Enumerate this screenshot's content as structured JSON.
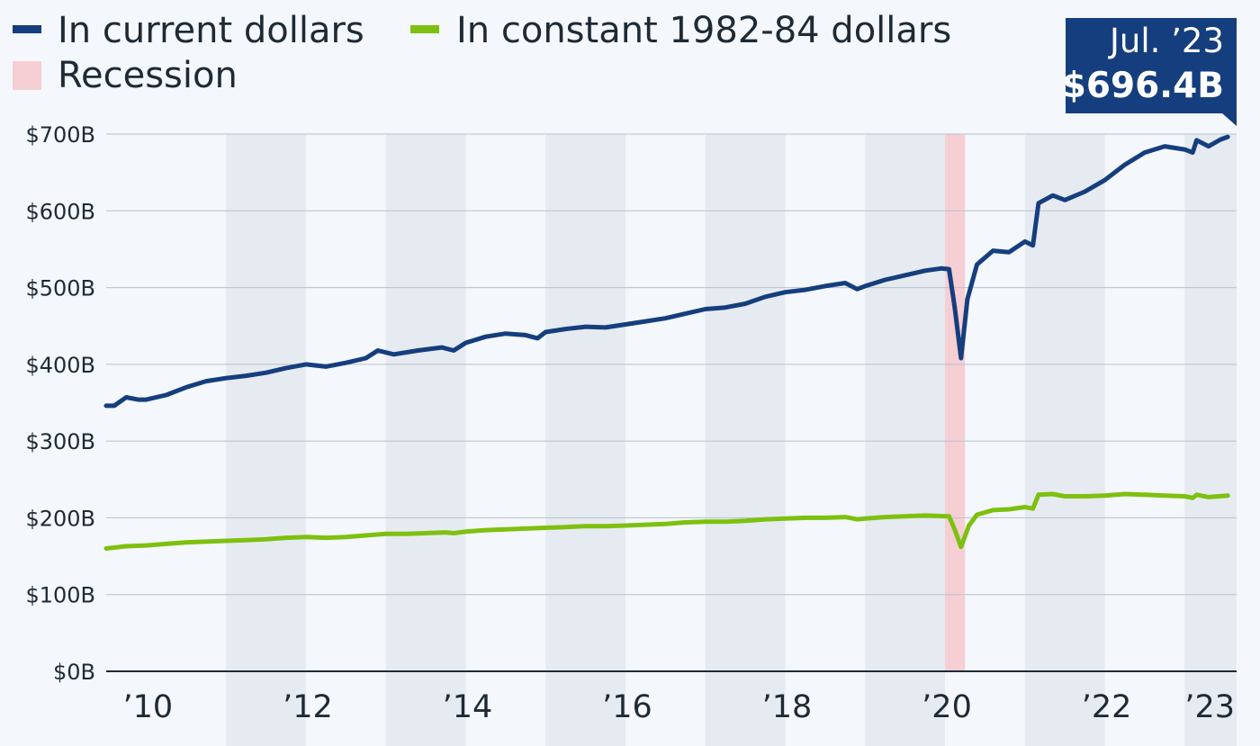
{
  "chart_data": {
    "type": "line",
    "title": "",
    "xlabel": "",
    "ylabel": "",
    "x_unit": "year",
    "xlim": [
      2009.5,
      2023.65
    ],
    "ylim": [
      0,
      700
    ],
    "y_ticks": [
      0,
      100,
      200,
      300,
      400,
      500,
      600,
      700
    ],
    "y_tick_labels": [
      "$0B",
      "$100B",
      "$200B",
      "$300B",
      "$400B",
      "$500B",
      "$600B",
      "$700B"
    ],
    "x_ticks": [
      2010,
      2012,
      2014,
      2016,
      2018,
      2020,
      2022,
      2023
    ],
    "x_tick_labels": [
      "’10",
      "’12",
      "’14",
      "’16",
      "’18",
      "’20",
      "’22",
      "’23"
    ],
    "grid": "horizontal",
    "legend_position": "top-left",
    "legend": [
      {
        "label": "In current dollars",
        "color": "#153e7e",
        "kind": "line"
      },
      {
        "label": "In constant 1982-84 dollars",
        "color": "#7ec00f",
        "kind": "line"
      },
      {
        "label": "Recession",
        "color": "#f5cfd3",
        "kind": "band"
      }
    ],
    "recession": {
      "from": 2020.0,
      "to": 2020.25
    },
    "annotation": {
      "line1": "Jul. ’23",
      "line2": "$696.4B",
      "x": 2023.54,
      "y": 696.4,
      "bg": "#153e7e"
    },
    "series": [
      {
        "name": "In current dollars",
        "color": "#153e7e",
        "points": [
          [
            2009.5,
            346
          ],
          [
            2009.6,
            346
          ],
          [
            2009.75,
            357
          ],
          [
            2009.9,
            354
          ],
          [
            2010.0,
            354
          ],
          [
            2010.25,
            360
          ],
          [
            2010.5,
            370
          ],
          [
            2010.75,
            378
          ],
          [
            2011.0,
            382
          ],
          [
            2011.25,
            385
          ],
          [
            2011.5,
            389
          ],
          [
            2011.75,
            395
          ],
          [
            2012.0,
            400
          ],
          [
            2012.25,
            397
          ],
          [
            2012.5,
            402
          ],
          [
            2012.75,
            408
          ],
          [
            2012.9,
            418
          ],
          [
            2013.1,
            413
          ],
          [
            2013.4,
            418
          ],
          [
            2013.7,
            422
          ],
          [
            2013.85,
            418
          ],
          [
            2014.0,
            428
          ],
          [
            2014.25,
            436
          ],
          [
            2014.5,
            440
          ],
          [
            2014.75,
            438
          ],
          [
            2014.9,
            434
          ],
          [
            2015.0,
            442
          ],
          [
            2015.25,
            446
          ],
          [
            2015.5,
            449
          ],
          [
            2015.75,
            448
          ],
          [
            2016.0,
            452
          ],
          [
            2016.25,
            456
          ],
          [
            2016.5,
            460
          ],
          [
            2016.75,
            466
          ],
          [
            2017.0,
            472
          ],
          [
            2017.25,
            474
          ],
          [
            2017.5,
            479
          ],
          [
            2017.75,
            488
          ],
          [
            2018.0,
            494
          ],
          [
            2018.25,
            497
          ],
          [
            2018.5,
            502
          ],
          [
            2018.75,
            506
          ],
          [
            2018.9,
            498
          ],
          [
            2019.0,
            502
          ],
          [
            2019.25,
            510
          ],
          [
            2019.5,
            516
          ],
          [
            2019.75,
            522
          ],
          [
            2019.95,
            525
          ],
          [
            2020.05,
            524
          ],
          [
            2020.12,
            475
          ],
          [
            2020.2,
            408
          ],
          [
            2020.28,
            485
          ],
          [
            2020.4,
            530
          ],
          [
            2020.6,
            548
          ],
          [
            2020.8,
            546
          ],
          [
            2021.0,
            560
          ],
          [
            2021.1,
            555
          ],
          [
            2021.17,
            610
          ],
          [
            2021.35,
            620
          ],
          [
            2021.5,
            614
          ],
          [
            2021.75,
            625
          ],
          [
            2022.0,
            640
          ],
          [
            2022.25,
            660
          ],
          [
            2022.5,
            676
          ],
          [
            2022.75,
            684
          ],
          [
            2023.0,
            680
          ],
          [
            2023.1,
            676
          ],
          [
            2023.15,
            692
          ],
          [
            2023.3,
            684
          ],
          [
            2023.45,
            693
          ],
          [
            2023.54,
            696.4
          ]
        ]
      },
      {
        "name": "In constant 1982-84 dollars",
        "color": "#7ec00f",
        "points": [
          [
            2009.5,
            160
          ],
          [
            2009.75,
            163
          ],
          [
            2010.0,
            164
          ],
          [
            2010.25,
            166
          ],
          [
            2010.5,
            168
          ],
          [
            2010.75,
            169
          ],
          [
            2011.0,
            170
          ],
          [
            2011.25,
            171
          ],
          [
            2011.5,
            172
          ],
          [
            2011.75,
            174
          ],
          [
            2012.0,
            175
          ],
          [
            2012.25,
            174
          ],
          [
            2012.5,
            175
          ],
          [
            2012.75,
            177
          ],
          [
            2013.0,
            179
          ],
          [
            2013.25,
            179
          ],
          [
            2013.5,
            180
          ],
          [
            2013.75,
            181
          ],
          [
            2013.85,
            180
          ],
          [
            2014.0,
            182
          ],
          [
            2014.25,
            184
          ],
          [
            2014.5,
            185
          ],
          [
            2014.75,
            186
          ],
          [
            2015.0,
            187
          ],
          [
            2015.25,
            188
          ],
          [
            2015.5,
            189
          ],
          [
            2015.75,
            189
          ],
          [
            2016.0,
            190
          ],
          [
            2016.25,
            191
          ],
          [
            2016.5,
            192
          ],
          [
            2016.75,
            194
          ],
          [
            2017.0,
            195
          ],
          [
            2017.25,
            195
          ],
          [
            2017.5,
            196
          ],
          [
            2017.75,
            198
          ],
          [
            2018.0,
            199
          ],
          [
            2018.25,
            200
          ],
          [
            2018.5,
            200
          ],
          [
            2018.75,
            201
          ],
          [
            2018.9,
            198
          ],
          [
            2019.0,
            199
          ],
          [
            2019.25,
            201
          ],
          [
            2019.5,
            202
          ],
          [
            2019.75,
            203
          ],
          [
            2020.05,
            202
          ],
          [
            2020.12,
            185
          ],
          [
            2020.2,
            162
          ],
          [
            2020.3,
            190
          ],
          [
            2020.4,
            204
          ],
          [
            2020.6,
            210
          ],
          [
            2020.8,
            211
          ],
          [
            2021.0,
            214
          ],
          [
            2021.1,
            212
          ],
          [
            2021.17,
            230
          ],
          [
            2021.35,
            231
          ],
          [
            2021.5,
            228
          ],
          [
            2021.75,
            228
          ],
          [
            2022.0,
            229
          ],
          [
            2022.25,
            231
          ],
          [
            2022.5,
            230
          ],
          [
            2022.75,
            229
          ],
          [
            2023.0,
            228
          ],
          [
            2023.1,
            226
          ],
          [
            2023.15,
            230
          ],
          [
            2023.3,
            227
          ],
          [
            2023.54,
            229
          ]
        ]
      }
    ]
  }
}
